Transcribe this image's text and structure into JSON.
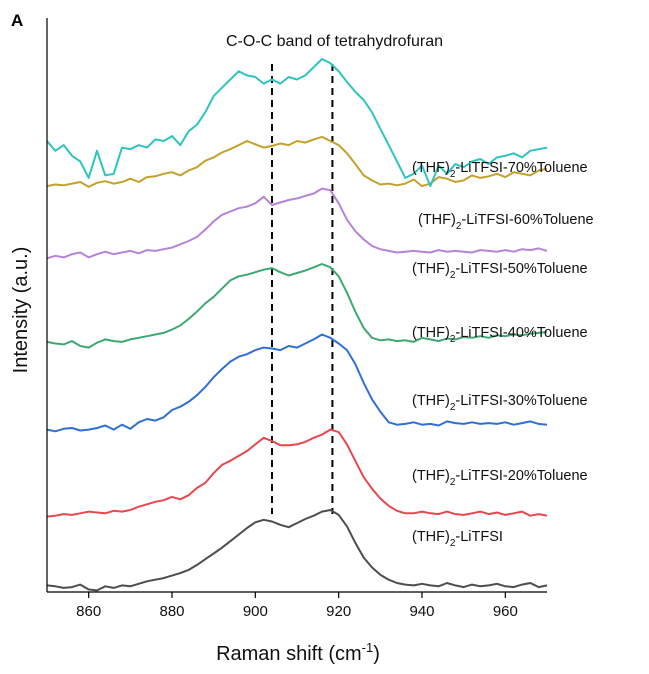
{
  "chart_data": {
    "type": "line",
    "panel_label": "A",
    "title": "C-O-C band of tetrahydrofuran",
    "xlabel": "Raman shift (cm",
    "xlabel_sup": "-1",
    "xlabel_close": ")",
    "ylabel": "Intensity (a.u.)",
    "xlim": [
      850,
      970
    ],
    "ylim": [
      0,
      7
    ],
    "xticks": [
      860,
      880,
      900,
      920,
      940,
      960
    ],
    "yticks_shown": false,
    "reference_lines_x": [
      904,
      918.5
    ],
    "series": [
      {
        "name": "(THF)2-LiTFSI",
        "label_main": "(THF)",
        "label_sub": "2",
        "label_rest": "-LiTFSI",
        "color": "#4d4d4d",
        "x": [
          850,
          852,
          854,
          856,
          858,
          860,
          862,
          864,
          866,
          868,
          870,
          872,
          874,
          876,
          878,
          880,
          882,
          884,
          886,
          888,
          890,
          892,
          894,
          896,
          898,
          900,
          902,
          904,
          906,
          908,
          910,
          912,
          914,
          916,
          918,
          920,
          922,
          924,
          926,
          928,
          930,
          932,
          934,
          936,
          938,
          940,
          942,
          944,
          946,
          948,
          950,
          952,
          954,
          956,
          958,
          960,
          962,
          964,
          966,
          968,
          970
        ],
        "y": [
          0.08,
          0.07,
          0.05,
          0.06,
          0.09,
          0.03,
          0.02,
          0.07,
          0.05,
          0.08,
          0.07,
          0.1,
          0.13,
          0.15,
          0.17,
          0.2,
          0.23,
          0.27,
          0.33,
          0.4,
          0.47,
          0.54,
          0.62,
          0.7,
          0.78,
          0.85,
          0.88,
          0.86,
          0.82,
          0.79,
          0.84,
          0.89,
          0.93,
          0.98,
          1.0,
          0.94,
          0.8,
          0.6,
          0.42,
          0.3,
          0.21,
          0.15,
          0.11,
          0.09,
          0.08,
          0.1,
          0.08,
          0.07,
          0.11,
          0.08,
          0.06,
          0.09,
          0.07,
          0.08,
          0.1,
          0.07,
          0.06,
          0.09,
          0.11,
          0.06,
          0.08
        ]
      },
      {
        "name": "(THF)2-LiTFSI-20%Toluene",
        "label_main": "(THF)",
        "label_sub": "2",
        "label_rest": "-LiTFSI-20%Toluene",
        "color": "#e8474f",
        "x": [
          850,
          852,
          854,
          856,
          858,
          860,
          862,
          864,
          866,
          868,
          870,
          872,
          874,
          876,
          878,
          880,
          882,
          884,
          886,
          888,
          890,
          892,
          894,
          896,
          898,
          900,
          902,
          904,
          906,
          908,
          910,
          912,
          914,
          916,
          918,
          920,
          922,
          924,
          926,
          928,
          930,
          932,
          934,
          936,
          938,
          940,
          942,
          944,
          946,
          948,
          950,
          952,
          954,
          956,
          958,
          960,
          962,
          964,
          966,
          968,
          970
        ],
        "y": [
          0.92,
          0.93,
          0.95,
          0.94,
          0.96,
          0.98,
          0.97,
          0.96,
          0.99,
          0.98,
          1.0,
          1.04,
          1.07,
          1.1,
          1.12,
          1.16,
          1.13,
          1.18,
          1.27,
          1.33,
          1.45,
          1.55,
          1.6,
          1.66,
          1.72,
          1.8,
          1.88,
          1.84,
          1.79,
          1.79,
          1.8,
          1.83,
          1.88,
          1.92,
          1.98,
          1.95,
          1.8,
          1.6,
          1.4,
          1.26,
          1.14,
          1.05,
          0.99,
          0.96,
          0.96,
          0.98,
          0.96,
          0.95,
          0.98,
          0.95,
          0.94,
          0.96,
          0.98,
          0.95,
          0.97,
          0.94,
          0.96,
          0.98,
          0.93,
          0.95,
          0.93
        ]
      },
      {
        "name": "(THF)2-LiTFSI-30%Toluene",
        "label_main": "(THF)",
        "label_sub": "2",
        "label_rest": "-LiTFSI-30%Toluene",
        "color": "#2f6fd6",
        "x": [
          850,
          852,
          854,
          856,
          858,
          860,
          862,
          864,
          866,
          868,
          870,
          872,
          874,
          876,
          878,
          880,
          882,
          884,
          886,
          888,
          890,
          892,
          894,
          896,
          898,
          900,
          902,
          904,
          906,
          908,
          910,
          912,
          914,
          916,
          918,
          920,
          922,
          924,
          926,
          928,
          930,
          932,
          934,
          936,
          938,
          940,
          942,
          944,
          946,
          948,
          950,
          952,
          954,
          956,
          958,
          960,
          962,
          964,
          966,
          968,
          970
        ],
        "y": [
          1.98,
          1.96,
          1.99,
          2.0,
          1.97,
          1.98,
          2.0,
          2.03,
          1.98,
          2.04,
          1.99,
          2.07,
          2.11,
          2.09,
          2.13,
          2.22,
          2.26,
          2.32,
          2.4,
          2.5,
          2.62,
          2.72,
          2.81,
          2.87,
          2.9,
          2.95,
          2.98,
          2.97,
          2.95,
          3.0,
          2.98,
          3.03,
          3.08,
          3.14,
          3.1,
          3.03,
          2.95,
          2.78,
          2.55,
          2.35,
          2.2,
          2.07,
          2.04,
          2.05,
          2.07,
          2.04,
          2.05,
          2.03,
          2.08,
          2.06,
          2.05,
          2.07,
          2.05,
          2.06,
          2.05,
          2.07,
          2.04,
          2.06,
          2.08,
          2.05,
          2.04
        ]
      },
      {
        "name": "(THF)2-LiTFSI-40%Toluene",
        "label_main": "(THF)",
        "label_sub": "2",
        "label_rest": "-LiTFSI-40%Toluene",
        "color": "#3ea872",
        "x": [
          850,
          852,
          854,
          856,
          858,
          860,
          862,
          864,
          866,
          868,
          870,
          872,
          874,
          876,
          878,
          880,
          882,
          884,
          886,
          888,
          890,
          892,
          894,
          896,
          898,
          900,
          902,
          904,
          906,
          908,
          910,
          912,
          914,
          916,
          918,
          920,
          922,
          924,
          926,
          928,
          930,
          932,
          934,
          936,
          938,
          940,
          942,
          944,
          946,
          948,
          950,
          952,
          954,
          956,
          958,
          960,
          962,
          964,
          966,
          968,
          970
        ],
        "y": [
          3.05,
          3.03,
          3.02,
          3.06,
          3.0,
          2.98,
          3.04,
          3.08,
          3.06,
          3.05,
          3.08,
          3.1,
          3.12,
          3.14,
          3.16,
          3.2,
          3.25,
          3.33,
          3.42,
          3.52,
          3.6,
          3.7,
          3.8,
          3.85,
          3.87,
          3.9,
          3.93,
          3.95,
          3.9,
          3.86,
          3.89,
          3.92,
          3.96,
          4.0,
          3.96,
          3.85,
          3.65,
          3.42,
          3.22,
          3.1,
          3.07,
          3.08,
          3.06,
          3.07,
          3.05,
          3.1,
          3.08,
          3.06,
          3.09,
          3.08,
          3.11,
          3.1,
          3.12,
          3.1,
          3.13,
          3.12,
          3.14,
          3.13,
          3.15,
          3.16,
          3.17
        ]
      },
      {
        "name": "(THF)2-LiTFSI-50%Toluene",
        "label_main": "(THF)",
        "label_sub": "2",
        "label_rest": "-LiTFSI-50%Toluene",
        "color": "#b683d8",
        "x": [
          850,
          852,
          854,
          856,
          858,
          860,
          862,
          864,
          866,
          868,
          870,
          872,
          874,
          876,
          878,
          880,
          882,
          884,
          886,
          888,
          890,
          892,
          894,
          896,
          898,
          900,
          902,
          904,
          906,
          908,
          910,
          912,
          914,
          916,
          918,
          920,
          922,
          924,
          926,
          928,
          930,
          932,
          934,
          936,
          938,
          940,
          942,
          944,
          946,
          948,
          950,
          952,
          954,
          956,
          958,
          960,
          962,
          964,
          966,
          968,
          970
        ],
        "y": [
          4.07,
          4.1,
          4.08,
          4.12,
          4.14,
          4.08,
          4.12,
          4.15,
          4.12,
          4.14,
          4.16,
          4.13,
          4.17,
          4.16,
          4.18,
          4.2,
          4.24,
          4.28,
          4.33,
          4.42,
          4.52,
          4.6,
          4.64,
          4.68,
          4.7,
          4.74,
          4.82,
          4.72,
          4.75,
          4.78,
          4.8,
          4.83,
          4.86,
          4.92,
          4.9,
          4.74,
          4.54,
          4.4,
          4.3,
          4.22,
          4.18,
          4.16,
          4.14,
          4.15,
          4.16,
          4.15,
          4.14,
          4.17,
          4.15,
          4.16,
          4.15,
          4.14,
          4.17,
          4.16,
          4.15,
          4.17,
          4.15,
          4.18,
          4.17,
          4.19,
          4.16
        ]
      },
      {
        "name": "(THF)2-LiTFSI-60%Toluene",
        "label_main": "(THF)",
        "label_sub": "2",
        "label_rest": "-LiTFSI-60%Toluene",
        "color": "#c4a12b",
        "x": [
          850,
          852,
          854,
          856,
          858,
          860,
          862,
          864,
          866,
          868,
          870,
          872,
          874,
          876,
          878,
          880,
          882,
          884,
          886,
          888,
          890,
          892,
          894,
          896,
          898,
          900,
          902,
          904,
          906,
          908,
          910,
          912,
          914,
          916,
          918,
          920,
          922,
          924,
          926,
          928,
          930,
          932,
          934,
          936,
          938,
          940,
          942,
          944,
          946,
          948,
          950,
          952,
          954,
          956,
          958,
          960,
          962,
          964,
          966,
          968,
          970
        ],
        "y": [
          4.95,
          4.97,
          4.96,
          4.98,
          5.0,
          4.94,
          4.99,
          5.01,
          4.98,
          5.0,
          5.04,
          5.0,
          5.06,
          5.07,
          5.1,
          5.12,
          5.08,
          5.14,
          5.18,
          5.26,
          5.3,
          5.36,
          5.4,
          5.45,
          5.5,
          5.46,
          5.42,
          5.44,
          5.47,
          5.45,
          5.5,
          5.48,
          5.52,
          5.55,
          5.5,
          5.45,
          5.35,
          5.22,
          5.08,
          5.02,
          4.97,
          4.98,
          4.96,
          4.98,
          5.03,
          4.95,
          4.98,
          5.06,
          5.04,
          5.0,
          5.02,
          5.08,
          5.05,
          5.07,
          5.1,
          5.06,
          5.12,
          5.1,
          5.08,
          5.14,
          5.16
        ]
      },
      {
        "name": "(THF)2-LiTFSI-70%Toluene",
        "label_main": "(THF)",
        "label_sub": "2",
        "label_rest": "-LiTFSI-70%Toluene",
        "color": "#2ec4bf",
        "x": [
          850,
          852,
          854,
          856,
          858,
          860,
          862,
          864,
          866,
          868,
          870,
          872,
          874,
          876,
          878,
          880,
          882,
          884,
          886,
          888,
          890,
          892,
          894,
          896,
          898,
          900,
          902,
          904,
          906,
          908,
          910,
          912,
          914,
          916,
          918,
          920,
          922,
          924,
          926,
          928,
          930,
          932,
          934,
          936,
          938,
          940,
          942,
          944,
          946,
          948,
          950,
          952,
          954,
          956,
          958,
          960,
          962,
          964,
          966,
          968,
          970
        ],
        "y": [
          5.5,
          5.38,
          5.45,
          5.32,
          5.25,
          5.05,
          5.38,
          5.08,
          5.1,
          5.42,
          5.4,
          5.45,
          5.42,
          5.52,
          5.5,
          5.56,
          5.45,
          5.62,
          5.7,
          5.85,
          6.05,
          6.15,
          6.25,
          6.35,
          6.3,
          6.28,
          6.2,
          6.25,
          6.2,
          6.28,
          6.25,
          6.3,
          6.4,
          6.5,
          6.45,
          6.35,
          6.22,
          6.1,
          6.0,
          5.85,
          5.65,
          5.45,
          5.25,
          5.05,
          5.1,
          5.2,
          4.95,
          5.2,
          5.1,
          5.22,
          5.18,
          5.25,
          5.28,
          5.22,
          5.3,
          5.32,
          5.35,
          5.3,
          5.38,
          5.4,
          5.42
        ]
      }
    ]
  }
}
